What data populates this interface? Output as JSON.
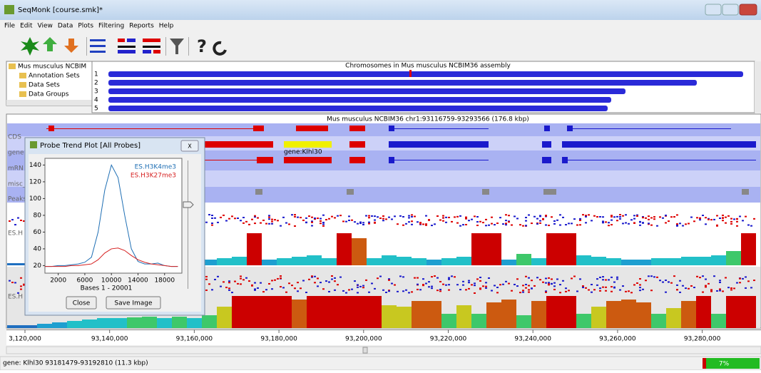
{
  "window": {
    "title": "SeqMonk [course.smk]*"
  },
  "menu": [
    "File",
    "Edit",
    "View",
    "Data",
    "Plots",
    "Filtering",
    "Reports",
    "Help"
  ],
  "tree": [
    "Mus musculus NCBIM",
    "Annotation Sets",
    "Data Sets",
    "Data Groups"
  ],
  "chromosome_panel": {
    "title": "Chromosomes in Mus musculus NCBIM36 assembly",
    "chromosomes": [
      "1",
      "2",
      "3",
      "4",
      "5"
    ]
  },
  "genome_view": {
    "title": "Mus musculus NCBIM36 chr1:93116759-93293566 (176.8 kbp)",
    "track_labels": [
      "CDS",
      "gene",
      "mRN",
      "misc_",
      "Peaks",
      "ES.H",
      "ES.H"
    ],
    "gene_label": "gene:Klhl30",
    "quantitation_tracks": [
      {
        "values": [
          3,
          3,
          3,
          3,
          3,
          3,
          3,
          3,
          3,
          3,
          3,
          3,
          5,
          8,
          10,
          12,
          45,
          8,
          10,
          12,
          14,
          10,
          45,
          38,
          10,
          14,
          12,
          10,
          8,
          10,
          12,
          45,
          45,
          8,
          16,
          10,
          45,
          45,
          14,
          12,
          10,
          8,
          8,
          10,
          10,
          12,
          12,
          14,
          20,
          45
        ]
      },
      {
        "values": [
          4,
          4,
          6,
          8,
          10,
          12,
          14,
          14,
          15,
          16,
          14,
          16,
          14,
          18,
          30,
          45,
          45,
          45,
          45,
          40,
          45,
          45,
          45,
          45,
          45,
          32,
          30,
          38,
          38,
          20,
          32,
          20,
          36,
          40,
          18,
          38,
          45,
          45,
          20,
          30,
          38,
          40,
          36,
          20,
          28,
          38,
          45,
          20,
          45,
          45
        ]
      }
    ],
    "ruler": [
      "3,120,000",
      "93,140,000",
      "93,160,000",
      "93,180,000",
      "93,200,000",
      "93,220,000",
      "93,240,000",
      "93,260,000",
      "93,280,000"
    ]
  },
  "trend_plot": {
    "title": "Probe Trend Plot [All Probes]",
    "x": [
      0,
      1000,
      2000,
      3000,
      4000,
      5000,
      6000,
      7000,
      8000,
      9000,
      10000,
      11000,
      12000,
      13000,
      14000,
      15000,
      16000,
      17000,
      18000,
      19000,
      20000
    ],
    "series": [
      {
        "name": "ES.H3K4me3",
        "color": "#1f6fb4",
        "values": [
          19,
          19,
          20,
          20,
          21,
          22,
          24,
          30,
          60,
          110,
          140,
          125,
          80,
          40,
          25,
          22,
          22,
          23,
          20,
          19,
          19
        ]
      },
      {
        "name": "ES.H3K27me3",
        "color": "#d62020",
        "values": [
          19,
          19,
          19,
          19,
          20,
          20,
          21,
          22,
          27,
          35,
          40,
          41,
          38,
          32,
          27,
          24,
          22,
          21,
          20,
          19,
          19
        ]
      }
    ],
    "xlim": [
      0,
      20600
    ],
    "ylim": [
      11,
      148
    ],
    "xticks": [
      2000,
      6000,
      10000,
      14000,
      18000
    ],
    "yticks": [
      20,
      40,
      60,
      80,
      100,
      120,
      140
    ],
    "xlabel": "Bases 1 - 20001",
    "buttons": [
      "Close",
      "Save Image"
    ]
  },
  "status": {
    "text": "gene: Klhl30 93181479-93192810 (11.3 kbp)",
    "progress": "7%"
  }
}
